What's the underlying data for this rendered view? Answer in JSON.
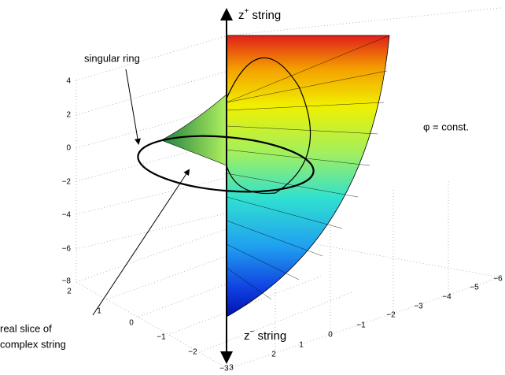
{
  "annotations": {
    "z_plus": "z",
    "z_plus_sup": "+",
    "z_plus_rest": " string",
    "z_minus": "z",
    "z_minus_sup": "−",
    "z_minus_rest": " string",
    "singular_ring": "singular ring",
    "phi_const": "φ = const.",
    "real_slice_1": "real slice of",
    "real_slice_2": "complex string"
  },
  "z_axis_ticks": [
    "4",
    "2",
    "0",
    "−2",
    "−4",
    "−6",
    "−8"
  ],
  "left_axis_ticks": [
    "2",
    "1",
    "0",
    "−1",
    "−2",
    "−3"
  ],
  "right_axis_ticks": [
    "3",
    "2",
    "1",
    "0",
    "−1",
    "−2",
    "−3",
    "−4",
    "−5",
    "−6"
  ]
}
